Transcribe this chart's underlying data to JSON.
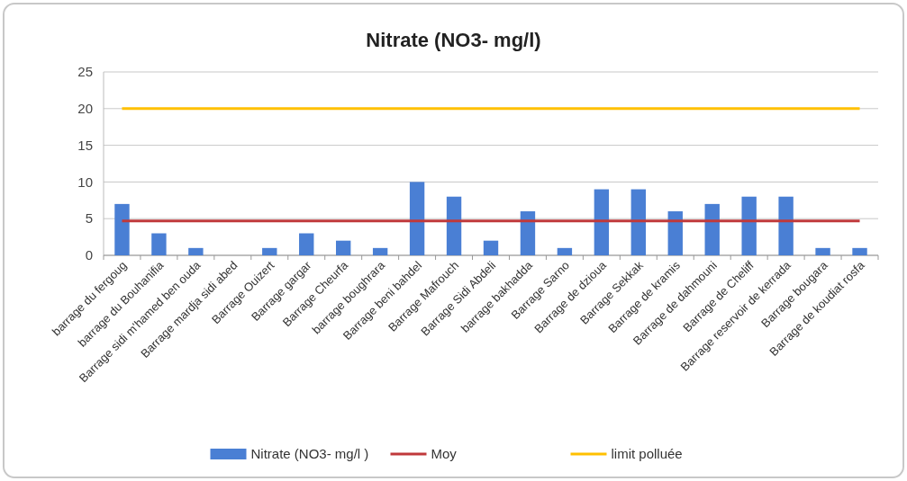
{
  "chart_data": {
    "type": "bar",
    "title": "Nitrate (NO3- mg/l)",
    "categories": [
      "barrage du fergoug",
      "barrage du Bouhanifia",
      "Barrage sidi m'hamed ben ouda",
      "Barrage mardja sidi abed",
      "Barrage Ouizert",
      "Barrage gargar",
      "Barrage Cheurfa",
      "barrage boughrara",
      "Barrage beni bahdel",
      "Barrage Mafrouch",
      "Barrage Sidi Abdeli",
      "barrage bakhadda",
      "Barrage Sarno",
      "Barrage de dzioua",
      "Barrage Sekkak",
      "Barrage de kramis",
      "Barrage de dahmouni",
      "Barrage de Cheliff",
      "Barrage reservoir de kerrada",
      "Barrage bougara",
      "Barrage de koudiat rosfa"
    ],
    "series": [
      {
        "name": "Nitrate (NO3- mg/l )",
        "color": "#4a7fd4",
        "values": [
          7,
          3,
          1,
          null,
          1,
          3,
          2,
          1,
          10,
          8,
          2,
          6,
          1,
          9,
          9,
          6,
          7,
          8,
          8,
          1,
          1
        ]
      },
      {
        "name": "Moy",
        "type": "line",
        "color": "#c0393b",
        "values": [
          4.7,
          4.7,
          4.7,
          4.7,
          4.7,
          4.7,
          4.7,
          4.7,
          4.7,
          4.7,
          4.7,
          4.7,
          4.7,
          4.7,
          4.7,
          4.7,
          4.7,
          4.7,
          4.7,
          4.7,
          4.7
        ]
      },
      {
        "name": "limit polluée",
        "type": "line",
        "color": "#ffc000",
        "values": [
          20,
          20,
          20,
          20,
          20,
          20,
          20,
          20,
          20,
          20,
          20,
          20,
          20,
          20,
          20,
          20,
          20,
          20,
          20,
          20,
          20
        ]
      }
    ],
    "ylim": [
      0,
      25
    ],
    "yticks": [
      0,
      5,
      10,
      15,
      20,
      25
    ],
    "grid": "y",
    "legend": "bottom",
    "marker": "none",
    "line_style": "solid"
  }
}
